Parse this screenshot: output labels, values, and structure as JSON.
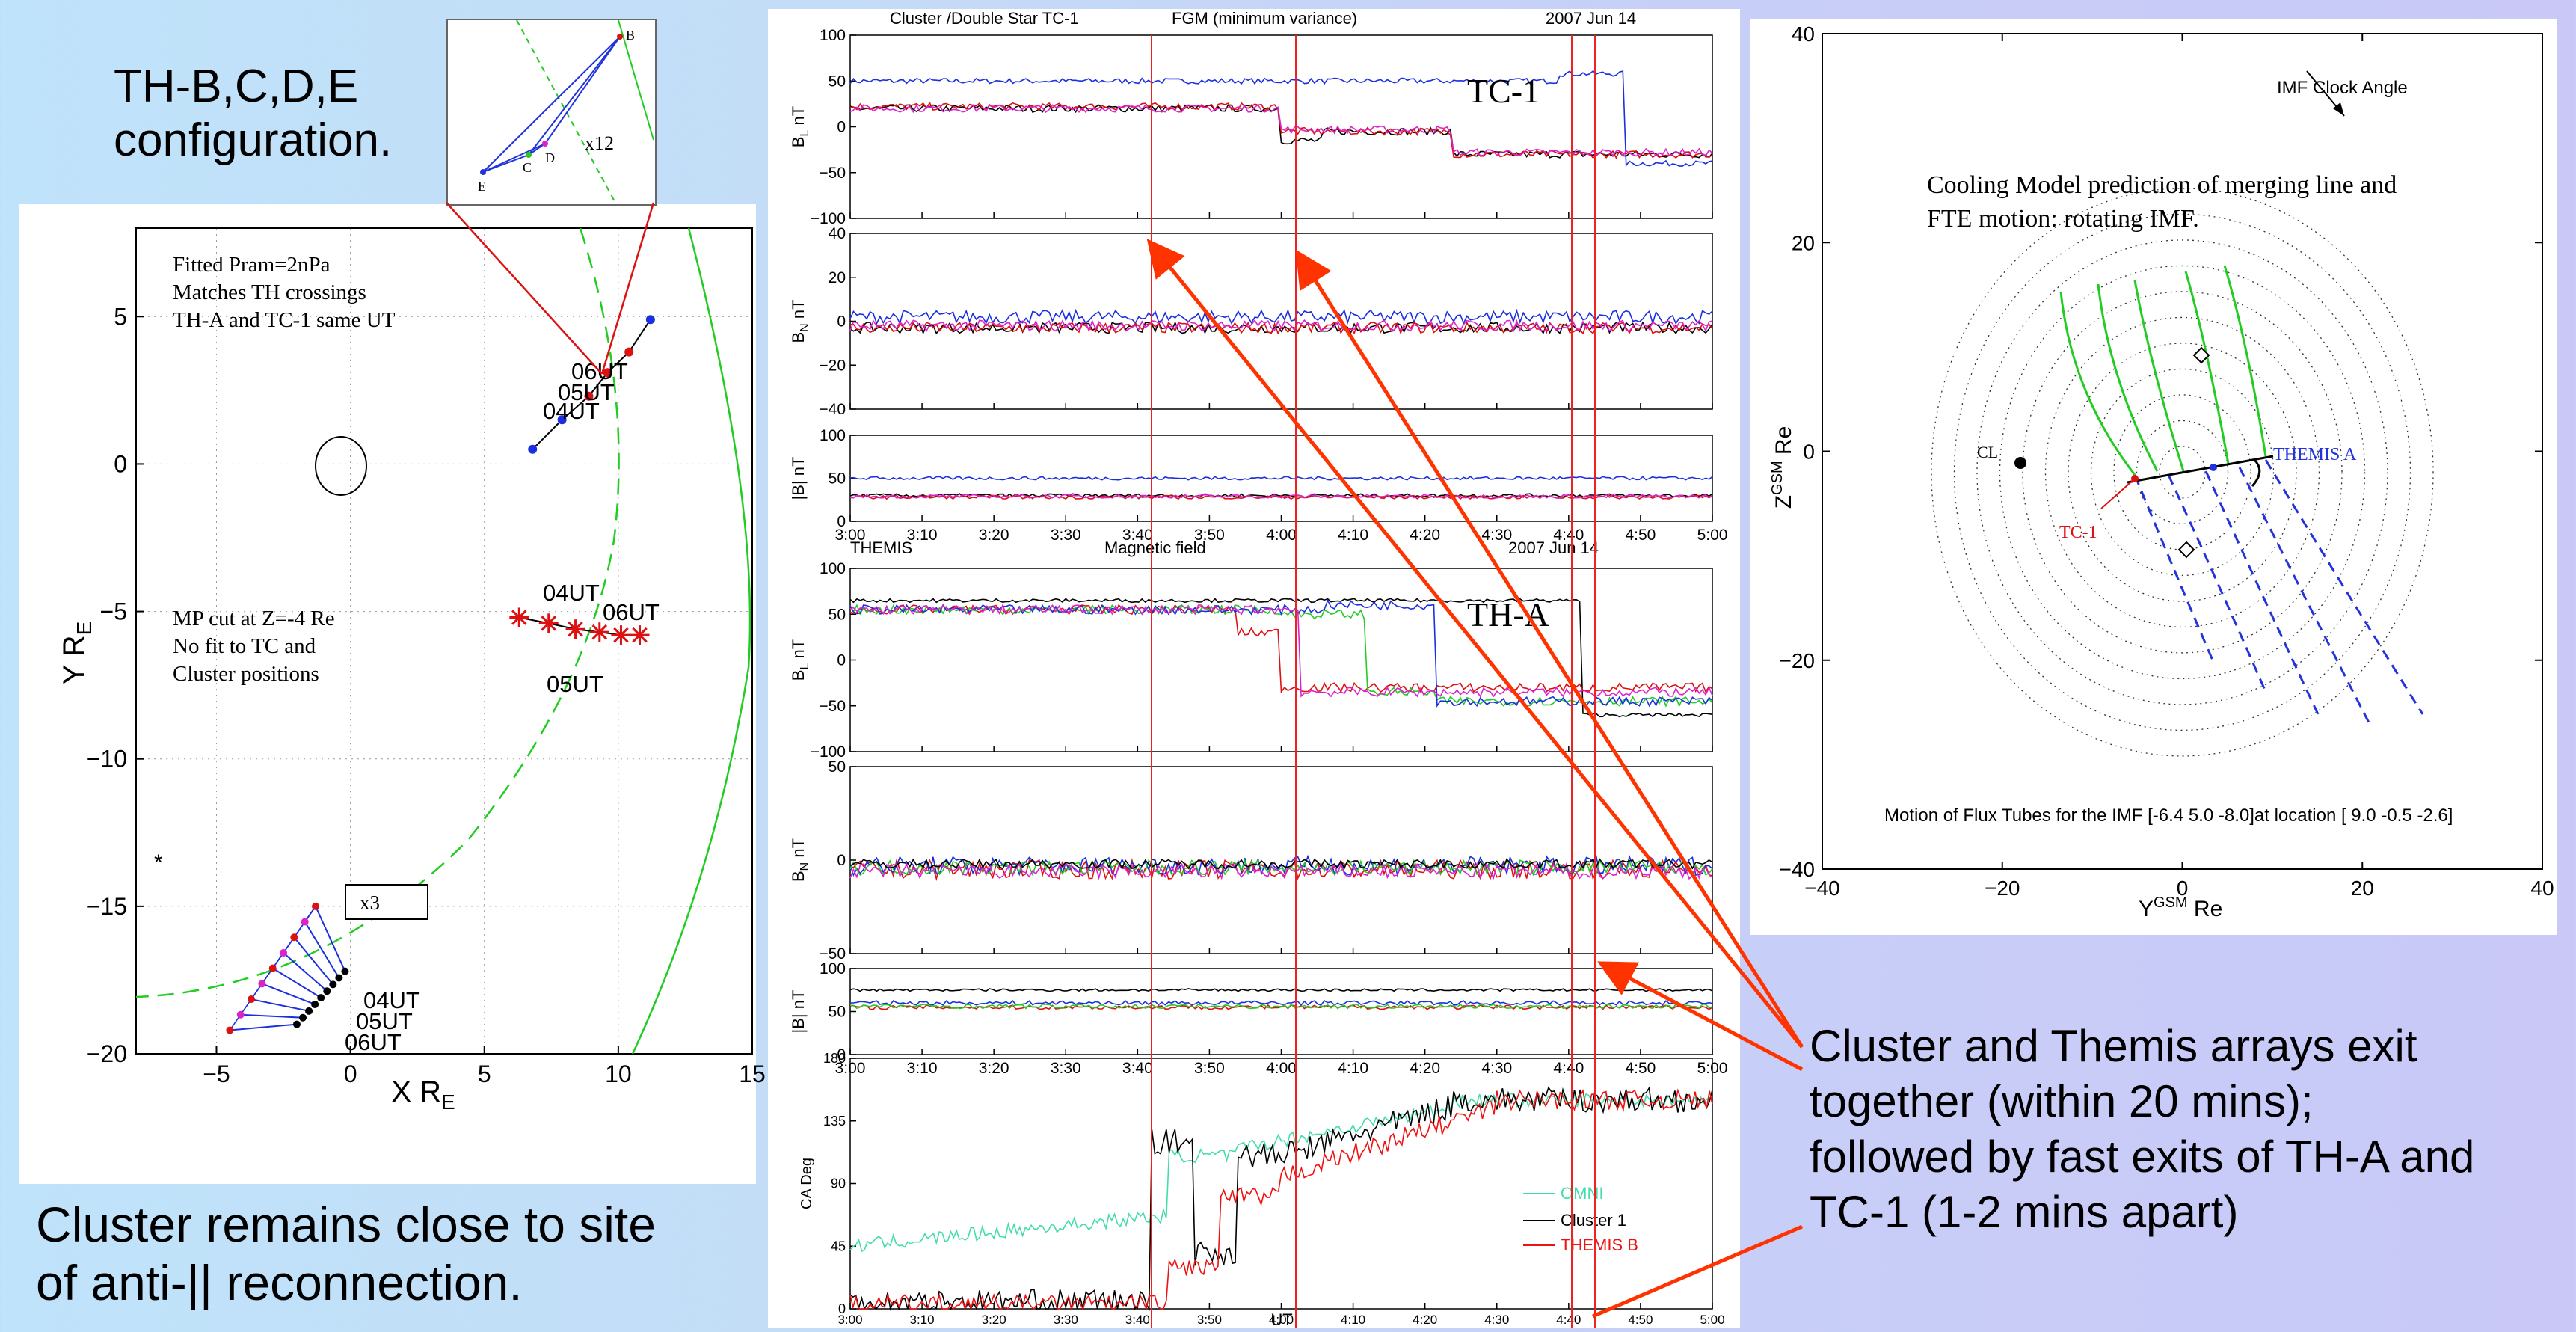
{
  "slide": {
    "title_line1": "TH-B,C,D,E",
    "title_line2": "configuration.",
    "bottom_left_line1": "Cluster remains close to site",
    "bottom_left_line2": "of anti-|| reconnection.",
    "right_text_line1": "Cluster and Themis arrays exit",
    "right_text_line2": "together (within 20 mins);",
    "right_text_line3": "followed by fast exits of TH-A and",
    "right_text_line4": "TC-1 (1-2 mins apart)",
    "colors": {
      "arrow": "#ff3300",
      "vline": "#ee2222",
      "green": "#22cc22",
      "blue": "#1a2fe0",
      "red": "#dd1111",
      "magenta": "#dd22cc"
    }
  },
  "chart_data": [
    {
      "type": "scatter",
      "xlabel": "X R",
      "xlabel_sub": "E",
      "ylabel": "Y R",
      "ylabel_sub": "E",
      "xlim": [
        -8,
        15
      ],
      "ylim": [
        -20,
        8
      ],
      "xticks": [
        "-5",
        "0",
        "5",
        "10",
        "15"
      ],
      "yticks": [
        "5",
        "0",
        "-5",
        "-10",
        "-15",
        "-20"
      ],
      "notes_top": [
        "Fitted Pram=2nPa",
        "Matches TH crossings",
        "TH-A and TC-1 same UT"
      ],
      "notes_mid": [
        "MP cut at Z=-4 Re",
        "No fit to TC and",
        "Cluster positions"
      ],
      "box_label": "x3",
      "themis_labels": [
        "06UT",
        "05UT",
        "04UT"
      ],
      "tc_labels": [
        "04UT",
        "06UT",
        "05UT"
      ],
      "cluster_labels": [
        "04UT",
        "05UT",
        "06UT"
      ],
      "themis_track": {
        "x": [
          6.8,
          7.9,
          8.9,
          9.6,
          10.4,
          11.2
        ],
        "y": [
          0.5,
          1.5,
          2.3,
          3.1,
          3.8,
          4.9
        ]
      },
      "tc_track": {
        "x": [
          6.3,
          7.4,
          8.4,
          9.3,
          10.1,
          10.8
        ],
        "y": [
          -5.2,
          -5.4,
          -5.6,
          -5.7,
          -5.8,
          -5.8
        ]
      },
      "cluster_track": {
        "x": [
          -4.5,
          -4.1,
          -3.7,
          -3.3,
          -2.9,
          -2.5,
          -2.1,
          -1.7,
          -1.3
        ],
        "y": [
          -19.2,
          -18.7,
          -18.2,
          -17.7,
          -17.2,
          -16.6,
          -16.1,
          -15.5,
          -15.0
        ]
      },
      "inset": {
        "labels": [
          "B",
          "E",
          "C",
          "D"
        ],
        "scale": "x12"
      }
    },
    {
      "type": "line",
      "header_left": "Cluster /Double Star TC-1",
      "header_mid": "FGM  (minimum variance)",
      "header_right": "2007  Jun  14",
      "panel_label": "TC-1",
      "xticks": [
        "3:00",
        "3:10",
        "3:20",
        "3:30",
        "3:40",
        "3:50",
        "4:00",
        "4:10",
        "4:20",
        "4:30",
        "4:40",
        "4:50",
        "5:00"
      ],
      "panels": [
        {
          "ylabel": "B",
          "ylabel_sub": "L",
          "unit": " nT",
          "ylim": [
            -100,
            100
          ],
          "yticks": [
            "100",
            "50",
            "0",
            "-50",
            "-100"
          ]
        },
        {
          "ylabel": "B",
          "ylabel_sub": "N",
          "unit": " nT",
          "ylim": [
            -40,
            40
          ],
          "yticks": [
            "40",
            "20",
            "0",
            "-20",
            "-40"
          ]
        },
        {
          "ylabel": "|B|",
          "ylabel_sub": "",
          "unit": " nT",
          "ylim": [
            0,
            100
          ],
          "yticks": [
            "100",
            "50",
            "0"
          ]
        }
      ]
    },
    {
      "type": "line",
      "header_left": "THEMIS",
      "header_mid": "Magnetic field",
      "header_right": "2007  Jun  14",
      "panel_label": "TH-A",
      "xticks": [
        "3:00",
        "3:10",
        "3:20",
        "3:30",
        "3:40",
        "3:50",
        "4:00",
        "4:10",
        "4:20",
        "4:30",
        "4:40",
        "4:50",
        "5:00"
      ],
      "panels": [
        {
          "ylabel": "B",
          "ylabel_sub": "L",
          "unit": " nT",
          "ylim": [
            -100,
            100
          ],
          "yticks": [
            "100",
            "50",
            "0",
            "-50",
            "-100"
          ]
        },
        {
          "ylabel": "B",
          "ylabel_sub": "N",
          "unit": " nT",
          "ylim": [
            -50,
            50
          ],
          "yticks": [
            "50",
            "0",
            "-50"
          ]
        },
        {
          "ylabel": "|B|",
          "ylabel_sub": "",
          "unit": " nT",
          "ylim": [
            0,
            100
          ],
          "yticks": [
            "100",
            "50",
            "0"
          ]
        }
      ]
    },
    {
      "type": "line",
      "ylabel": "CA Deg",
      "xlabel": "UT",
      "ylim": [
        0,
        180
      ],
      "yticks": [
        "180",
        "135",
        "90",
        "45",
        "0"
      ],
      "xticks": [
        "3:00",
        "3:10",
        "3:20",
        "3:30",
        "3:40",
        "3:50",
        "4:00",
        "4:10",
        "4:20",
        "4:30",
        "4:40",
        "4:50",
        "5:00"
      ],
      "legend": [
        "OMNI",
        "Cluster 1",
        "THEMIS B"
      ]
    },
    {
      "type": "diagram",
      "title": "IMF Clock Angle",
      "caption_line1": "Cooling Model prediction of  merging line and",
      "caption_line2": "FTE motion: rotating IMF.",
      "bottom_caption": "Motion of Flux Tubes for the IMF [-6.4  5.0 -8.0]at location [ 9.0 -0.5 -2.6]",
      "xlabel": "Y",
      "xlabel_sup": "GSM",
      "xlabel_unit": " Re",
      "ylabel": "Z",
      "ylabel_sup": "GSM",
      "ylabel_unit": " Re",
      "xlim": [
        -40,
        40
      ],
      "ylim": [
        -40,
        40
      ],
      "xticks": [
        "-40",
        "-20",
        "0",
        "20",
        "40"
      ],
      "yticks": [
        "40",
        "20",
        "0",
        "-20",
        "-40"
      ],
      "labels": {
        "cl": "CL",
        "tc1": "TC-1",
        "themis": "THEMIS A"
      }
    }
  ]
}
